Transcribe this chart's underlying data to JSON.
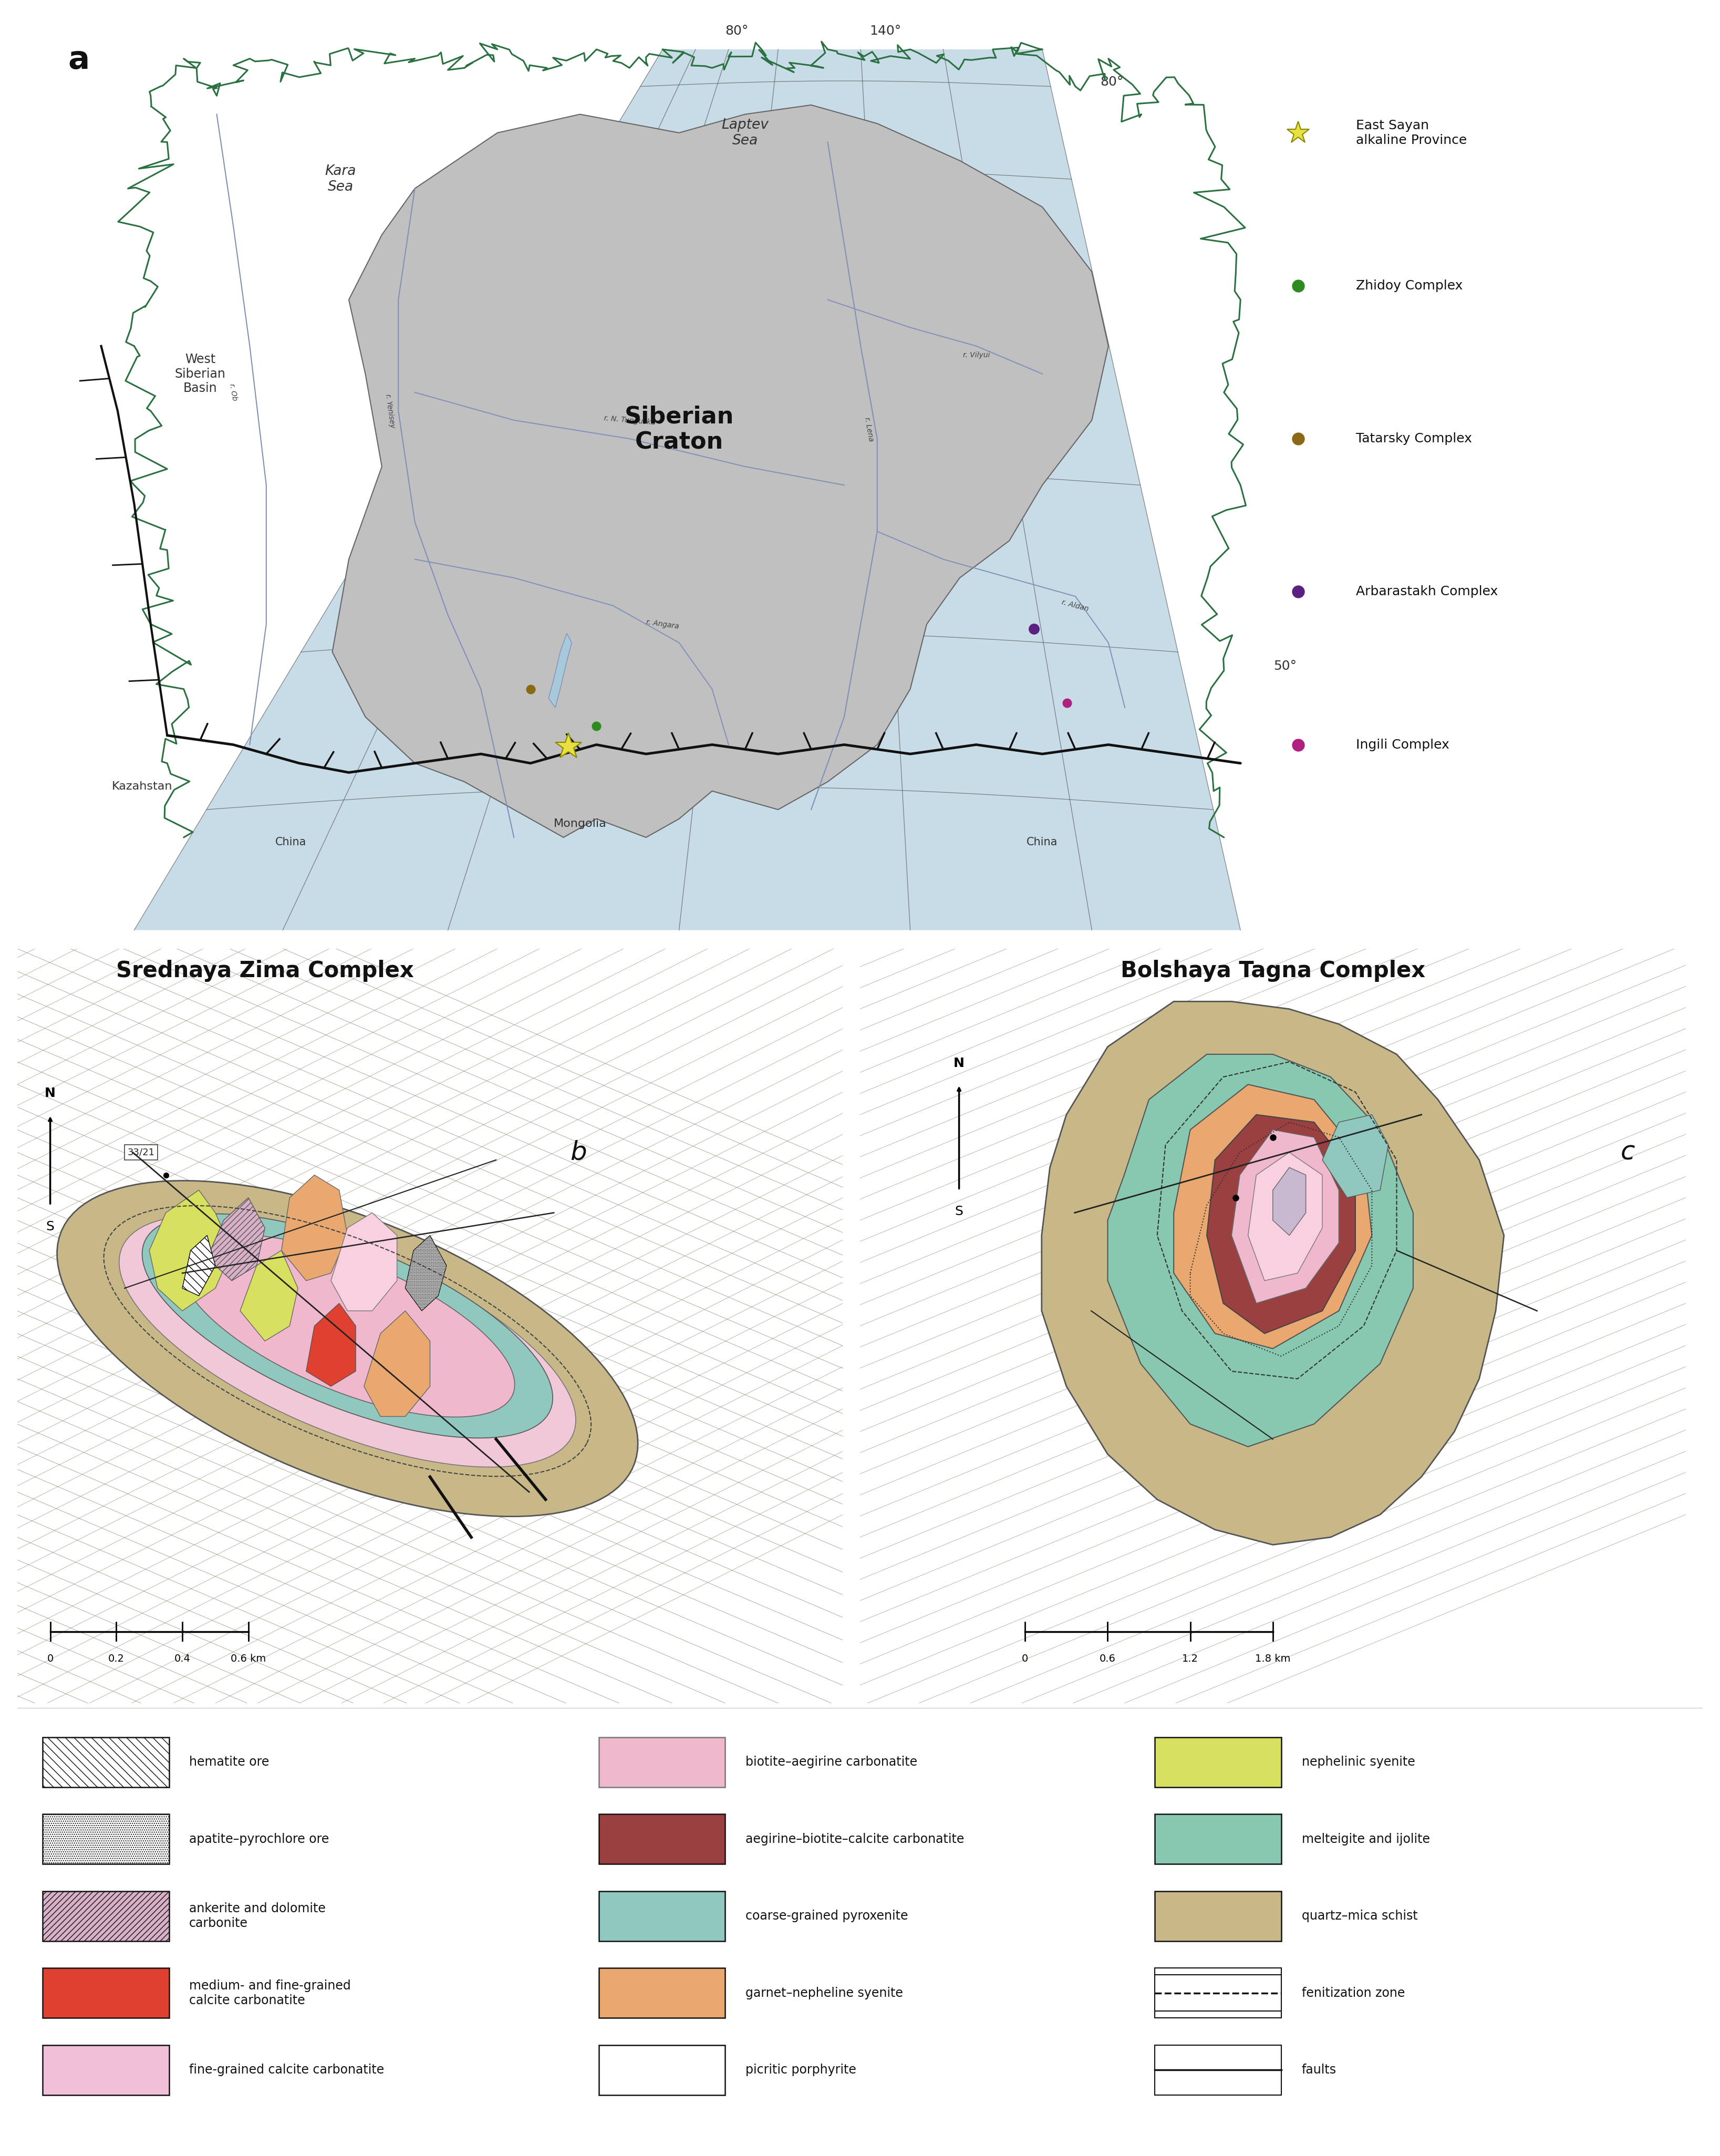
{
  "figure_bg": "#ffffff",
  "panel_a_label": "a",
  "panel_b_label": "b",
  "panel_c_label": "c",
  "map_sea_color": "#c8dce8",
  "craton_color": "#c0c0c0",
  "siberian_craton_text": "Siberian\nCraton",
  "kara_sea_text": "Kara\nSea",
  "laptev_sea_text": "Laptev\nSea",
  "west_siberian_text": "West\nSiberian\nBasin",
  "kazahstan_text": "Kazahstan",
  "mongolia_text": "Mongolia",
  "china_left_text": "China",
  "china_right_text": "China",
  "legend_star_color": "#e8e040",
  "legend_star_edge": "#888800",
  "zhidoy_color": "#2e8b20",
  "tatarsky_color": "#8b6914",
  "arbarastakh_color": "#5b2080",
  "ingili_color": "#b02080",
  "panel_b_title": "Srednaya Zima Complex",
  "panel_c_title": "Bolshaya Tagna Complex",
  "schist_color": "#c8b888",
  "melt_color": "#88c8b0",
  "garnet_color": "#e8a870",
  "aeg_bio_color": "#9b4040",
  "bio_aeg_color": "#f0b8cc",
  "fine_calc_color": "#f8d0e0",
  "coarse_pyro_color": "#90c8c0",
  "neph_syenite_color": "#d8e060",
  "med_calc_color": "#e04030",
  "ankerite_color": "#d8b0c8",
  "hematite_color": "#ffffff",
  "river_color": "#8090b8",
  "coast_color": "#2a7040"
}
